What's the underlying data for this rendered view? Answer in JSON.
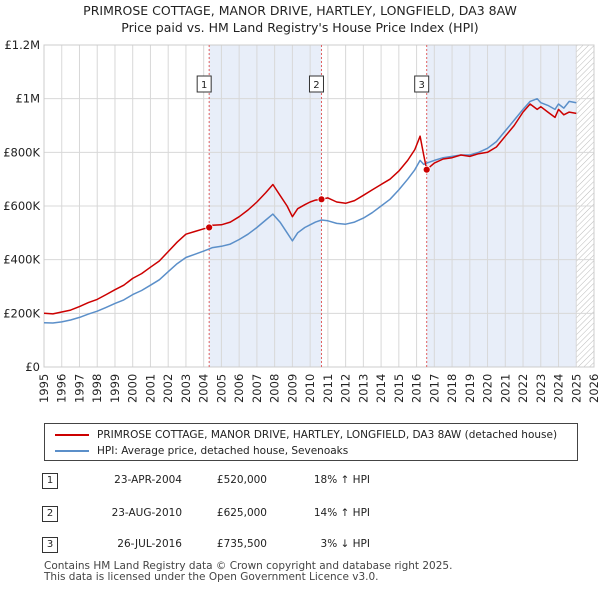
{
  "title_line1": "PRIMROSE COTTAGE, MANOR DRIVE, HARTLEY, LONGFIELD, DA3 8AW",
  "title_line2": "Price paid vs. HM Land Registry's House Price Index (HPI)",
  "colors": {
    "property": "#cc0000",
    "hpi": "#5b8fc9",
    "shade": "#e8eef9",
    "grid": "#d8d8d8",
    "vline": "#e06060"
  },
  "legend": {
    "property": "PRIMROSE COTTAGE, MANOR DRIVE, HARTLEY, LONGFIELD, DA3 8AW (detached house)",
    "hpi": "HPI: Average price, detached house, Sevenoaks"
  },
  "sales": [
    {
      "num": "1",
      "date": "23-APR-2004",
      "price": "£520,000",
      "hpi": "18% ↑ HPI"
    },
    {
      "num": "2",
      "date": "23-AUG-2010",
      "price": "£625,000",
      "hpi": "14% ↑ HPI"
    },
    {
      "num": "3",
      "date": "26-JUL-2016",
      "price": "£735,500",
      "hpi": "3% ↓ HPI"
    }
  ],
  "footer_line1": "Contains HM Land Registry data © Crown copyright and database right 2025.",
  "footer_line2": "This data is licensed under the Open Government Licence v3.0.",
  "chart_data": {
    "type": "line",
    "title": "Price paid vs. HM Land Registry's House Price Index (HPI)",
    "xlim": [
      1995,
      2026
    ],
    "ylim": [
      0,
      1200000
    ],
    "x_ticks": [
      "1995",
      "1996",
      "1997",
      "1998",
      "1999",
      "2000",
      "2001",
      "2002",
      "2003",
      "2004",
      "2005",
      "2006",
      "2007",
      "2008",
      "2009",
      "2010",
      "2011",
      "2012",
      "2013",
      "2014",
      "2015",
      "2016",
      "2017",
      "2018",
      "2019",
      "2020",
      "2021",
      "2022",
      "2023",
      "2024",
      "2025",
      "2026"
    ],
    "y_ticks": [
      {
        "value": 0,
        "label": "£0"
      },
      {
        "value": 200000,
        "label": "£200K"
      },
      {
        "value": 400000,
        "label": "£400K"
      },
      {
        "value": 600000,
        "label": "£600K"
      },
      {
        "value": 800000,
        "label": "£800K"
      },
      {
        "value": 1000000,
        "label": "£1M"
      },
      {
        "value": 1200000,
        "label": "£1.2M"
      }
    ],
    "shaded_ranges": [
      [
        2004.31,
        2010.64
      ],
      [
        2016.57,
        2025.0
      ]
    ],
    "hatched_after": 2025.0,
    "markers": [
      {
        "label": "1",
        "x": 2004.31,
        "y": 520000
      },
      {
        "label": "2",
        "x": 2010.64,
        "y": 625000
      },
      {
        "label": "3",
        "x": 2016.57,
        "y": 735500
      }
    ],
    "series": [
      {
        "name": "PRIMROSE COTTAGE, MANOR DRIVE, HARTLEY, LONGFIELD, DA3 8AW (detached house)",
        "color": "#cc0000",
        "x": [
          1995.0,
          1995.5,
          1996.0,
          1996.5,
          1997.0,
          1997.5,
          1998.0,
          1998.5,
          1999.0,
          1999.5,
          2000.0,
          2000.5,
          2001.0,
          2001.5,
          2002.0,
          2002.5,
          2003.0,
          2003.5,
          2004.0,
          2004.31,
          2004.5,
          2005.0,
          2005.5,
          2006.0,
          2006.5,
          2007.0,
          2007.5,
          2007.9,
          2008.3,
          2008.7,
          2009.0,
          2009.3,
          2009.7,
          2010.0,
          2010.3,
          2010.64,
          2011.0,
          2011.5,
          2012.0,
          2012.5,
          2013.0,
          2013.5,
          2014.0,
          2014.5,
          2015.0,
          2015.5,
          2015.9,
          2016.2,
          2016.4,
          2016.57,
          2017.0,
          2017.5,
          2018.0,
          2018.5,
          2019.0,
          2019.5,
          2020.0,
          2020.5,
          2021.0,
          2021.5,
          2022.0,
          2022.4,
          2022.8,
          2023.0,
          2023.4,
          2023.8,
          2024.0,
          2024.3,
          2024.6,
          2025.0
        ],
        "y": [
          200000,
          198000,
          205000,
          212000,
          225000,
          240000,
          252000,
          270000,
          288000,
          305000,
          330000,
          348000,
          372000,
          395000,
          430000,
          465000,
          495000,
          505000,
          515000,
          520000,
          528000,
          530000,
          540000,
          560000,
          585000,
          615000,
          650000,
          680000,
          640000,
          600000,
          560000,
          590000,
          605000,
          615000,
          622000,
          625000,
          630000,
          615000,
          610000,
          620000,
          640000,
          660000,
          680000,
          700000,
          730000,
          770000,
          810000,
          860000,
          790000,
          735500,
          760000,
          775000,
          780000,
          790000,
          785000,
          795000,
          800000,
          820000,
          860000,
          900000,
          950000,
          980000,
          960000,
          970000,
          950000,
          930000,
          960000,
          940000,
          950000,
          945000
        ]
      },
      {
        "name": "HPI: Average price, detached house, Sevenoaks",
        "color": "#5b8fc9",
        "x": [
          1995.0,
          1995.5,
          1996.0,
          1996.5,
          1997.0,
          1997.5,
          1998.0,
          1998.5,
          1999.0,
          1999.5,
          2000.0,
          2000.5,
          2001.0,
          2001.5,
          2002.0,
          2002.5,
          2003.0,
          2003.5,
          2004.0,
          2004.31,
          2004.5,
          2005.0,
          2005.5,
          2006.0,
          2006.5,
          2007.0,
          2007.5,
          2007.9,
          2008.3,
          2008.7,
          2009.0,
          2009.3,
          2009.7,
          2010.0,
          2010.3,
          2010.64,
          2011.0,
          2011.5,
          2012.0,
          2012.5,
          2013.0,
          2013.5,
          2014.0,
          2014.5,
          2015.0,
          2015.5,
          2015.9,
          2016.2,
          2016.4,
          2016.57,
          2017.0,
          2017.5,
          2018.0,
          2018.5,
          2019.0,
          2019.5,
          2020.0,
          2020.5,
          2021.0,
          2021.5,
          2022.0,
          2022.4,
          2022.8,
          2023.0,
          2023.4,
          2023.8,
          2024.0,
          2024.3,
          2024.6,
          2025.0
        ],
        "y": [
          165000,
          164000,
          168000,
          175000,
          185000,
          197000,
          208000,
          222000,
          237000,
          250000,
          270000,
          285000,
          305000,
          325000,
          355000,
          385000,
          408000,
          420000,
          432000,
          440000,
          445000,
          450000,
          458000,
          475000,
          495000,
          520000,
          548000,
          570000,
          540000,
          500000,
          470000,
          500000,
          520000,
          530000,
          540000,
          548000,
          545000,
          535000,
          532000,
          540000,
          555000,
          575000,
          600000,
          625000,
          660000,
          700000,
          735000,
          770000,
          755000,
          760000,
          770000,
          780000,
          785000,
          790000,
          790000,
          800000,
          815000,
          840000,
          880000,
          920000,
          960000,
          990000,
          1000000,
          985000,
          975000,
          960000,
          980000,
          965000,
          990000,
          985000
        ]
      }
    ]
  }
}
